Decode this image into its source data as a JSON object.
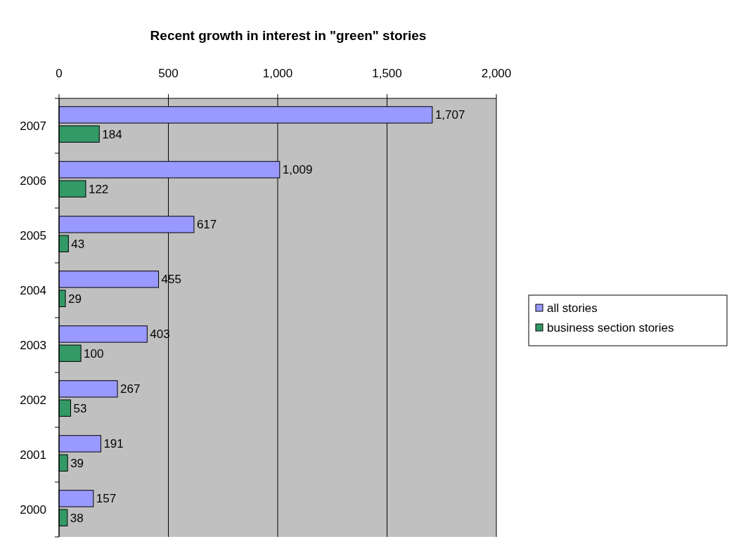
{
  "chart_data": {
    "type": "bar",
    "title": "Recent growth in interest in \"green\" stories",
    "orientation": "horizontal",
    "categories": [
      "2007",
      "2006",
      "2005",
      "2004",
      "2003",
      "2002",
      "2001",
      "2000"
    ],
    "series": [
      {
        "name": "all stories",
        "color": "#9999ff",
        "values": [
          1707,
          1009,
          617,
          455,
          403,
          267,
          191,
          157
        ],
        "value_labels": [
          "1,707",
          "1,009",
          "617",
          "455",
          "403",
          "267",
          "191",
          "157"
        ]
      },
      {
        "name": "business section stories",
        "color": "#339966",
        "values": [
          184,
          122,
          43,
          29,
          100,
          53,
          39,
          38
        ],
        "value_labels": [
          "184",
          "122",
          "43",
          "29",
          "100",
          "53",
          "39",
          "38"
        ]
      }
    ],
    "xlim": [
      0,
      2000
    ],
    "xticks": [
      0,
      500,
      {
        "value": 1000,
        "label": "1,000"
      },
      {
        "value": 1500,
        "label": "1,500"
      },
      {
        "value": 2000,
        "label": "2,000"
      }
    ],
    "grid": "x",
    "legend": "right"
  }
}
